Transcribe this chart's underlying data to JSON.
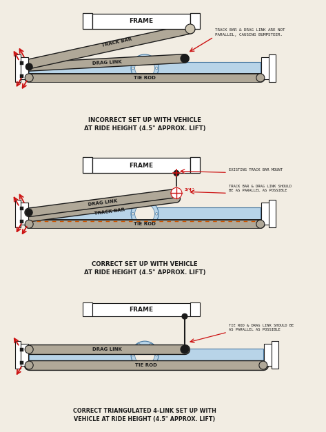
{
  "bg_color": "#f2ede3",
  "line_color": "#1a1a1a",
  "bar_fill": "#b0a898",
  "bar_edge": "#1a1a1a",
  "bar_fill_light": "#ccc4b0",
  "blue_fill": "#b8d4e8",
  "blue_edge": "#4878a0",
  "red_arrow": "#cc1111",
  "orange_dashed": "#cc5500",
  "white": "#ffffff",
  "diagram1": {
    "title": "INCORRECT SET UP WITH VEHICLE\nAT RIDE HEIGHT (4.5\" APPROX. LIFT)",
    "note": "TRACK BAR & DRAG LINK ARE NOT\nPARALLEL, CAUSING BUMPSTEER.",
    "frame_label": "FRAME",
    "drag_link_label": "DRAG LINK",
    "track_bar_label": "TRACK BAR",
    "tie_rod_label": "TIE ROD"
  },
  "diagram2": {
    "title": "CORRECT SET UP WITH VEHICLE\nAT RIDE HEIGHT (4.5\" APPROX. LIFT)",
    "note1": "EXISTING TRACK BAR MOUNT",
    "note2": "TRACK BAR & DRAG LINK SHOULD\nBE AS PARALLEL AS POSSIBLE",
    "note3": "3/4\"",
    "frame_label": "FRAME",
    "drag_link_label": "DRAG LINK",
    "track_bar_label": "TRACK BAR",
    "tie_rod_label": "TIE ROD"
  },
  "diagram3": {
    "title": "CORRECT TRIANGULATED 4-LINK SET UP WITH\nVEHICLE AT RIDE HEIGHT (4.5\" APPROX. LIFT)",
    "note": "TIE ROD & DRAG LINK SHOULD BE\nAS PARALLEL AS POSSIBLE",
    "frame_label": "FRAME",
    "drag_link_label": "DRAG LINK",
    "tie_rod_label": "TIE ROD"
  }
}
